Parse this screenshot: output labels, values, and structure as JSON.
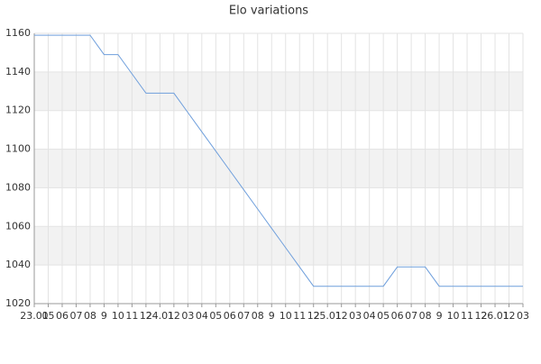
{
  "chart_data": {
    "type": "line",
    "title": "Elo variations",
    "categories": [
      "23.01",
      "05",
      "06",
      "07",
      "08",
      "9",
      "10",
      "11",
      "12",
      "24.01",
      "12",
      "03",
      "04",
      "05",
      "06",
      "07",
      "08",
      "9",
      "10",
      "11",
      "12",
      "25.01",
      "12",
      "03",
      "04",
      "05",
      "06",
      "07",
      "08",
      "9",
      "10",
      "11",
      "12",
      "26.01",
      "12",
      "03"
    ],
    "values": [
      1159,
      1159,
      1159,
      1159,
      1159,
      1149,
      1149,
      1139,
      1129,
      1129,
      1129,
      1119,
      1109,
      1099,
      1089,
      1079,
      1069,
      1059,
      1049,
      1039,
      1029,
      1029,
      1029,
      1029,
      1029,
      1029,
      1039,
      1039,
      1039,
      1029,
      1029,
      1029,
      1029,
      1029,
      1029,
      1029
    ],
    "color": "#6f9fdc",
    "ylim": [
      1020,
      1160
    ],
    "yticks": [
      1020,
      1040,
      1060,
      1080,
      1100,
      1120,
      1140,
      1160
    ],
    "grid": true
  }
}
